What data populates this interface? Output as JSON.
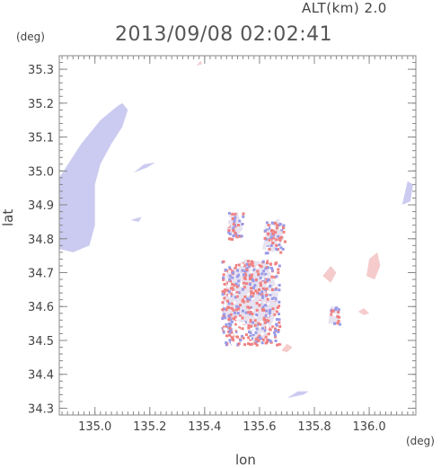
{
  "header": {
    "altitude_text": "ALT(km)  2.0",
    "datetime_text": "2013/09/08  02:02:41"
  },
  "chart_data": {
    "type": "heatmap",
    "title": "2013/09/08  02:02:41",
    "subtitle": "ALT(km)  2.0",
    "xlabel": "lon",
    "ylabel": "lat",
    "x_unit": "(deg)",
    "y_unit": "(deg)",
    "xlim": [
      134.87,
      136.17
    ],
    "ylim": [
      34.28,
      35.34
    ],
    "x_ticks": [
      135.0,
      135.2,
      135.4,
      135.6,
      135.8,
      136.0
    ],
    "x_tick_labels": [
      "135.0",
      "135.2",
      "135.4",
      "135.6",
      "135.8",
      "136.0"
    ],
    "y_ticks": [
      34.3,
      34.4,
      34.5,
      34.6,
      34.7,
      34.8,
      34.9,
      35.0,
      35.1,
      35.2,
      35.3
    ],
    "y_tick_labels": [
      "34.3",
      "34.4",
      "34.5",
      "34.6",
      "34.7",
      "34.8",
      "34.9",
      "35.0",
      "35.1",
      "35.2",
      "35.3"
    ],
    "grid": false,
    "colors": {
      "approaching_light": "#c8c8f0",
      "approaching": "#9a9ae8",
      "receding": "#f08080",
      "receding_light": "#f4c8c8"
    },
    "regions": [
      {
        "name": "west-large-echo",
        "sign": "negative",
        "polygon": [
          [
            134.87,
            34.77
          ],
          [
            134.87,
            34.98
          ],
          [
            134.95,
            35.08
          ],
          [
            135.02,
            35.15
          ],
          [
            135.08,
            35.19
          ],
          [
            135.1,
            35.2
          ],
          [
            135.12,
            35.18
          ],
          [
            135.1,
            35.13
          ],
          [
            135.06,
            35.08
          ],
          [
            135.02,
            35.02
          ],
          [
            135.0,
            34.96
          ],
          [
            135.0,
            34.88
          ],
          [
            135.0,
            34.84
          ],
          [
            134.98,
            34.78
          ],
          [
            134.92,
            34.76
          ]
        ]
      },
      {
        "name": "echo-135-14-34-86",
        "sign": "negative",
        "polygon": [
          [
            135.13,
            34.855
          ],
          [
            135.17,
            34.865
          ],
          [
            135.16,
            34.85
          ]
        ]
      },
      {
        "name": "echo-135-17-35-01",
        "sign": "negative",
        "polygon": [
          [
            135.14,
            34.995
          ],
          [
            135.19,
            35.01
          ],
          [
            135.22,
            35.025
          ],
          [
            135.18,
            35.02
          ]
        ]
      },
      {
        "name": "osaka-cluster",
        "sign": "mixed",
        "polygon": [
          [
            135.46,
            34.56
          ],
          [
            135.48,
            34.7
          ],
          [
            135.55,
            34.74
          ],
          [
            135.62,
            34.73
          ],
          [
            135.67,
            34.65
          ],
          [
            135.66,
            34.58
          ],
          [
            135.62,
            34.5
          ],
          [
            135.58,
            34.49
          ],
          [
            135.55,
            34.55
          ],
          [
            135.5,
            34.56
          ]
        ]
      },
      {
        "name": "north-cluster-135-5",
        "sign": "mixed",
        "polygon": [
          [
            135.48,
            34.82
          ],
          [
            135.49,
            34.87
          ],
          [
            135.52,
            34.88
          ],
          [
            135.54,
            34.83
          ],
          [
            135.51,
            34.8
          ]
        ]
      },
      {
        "name": "north-cluster-135-65",
        "sign": "mixed",
        "polygon": [
          [
            135.61,
            34.77
          ],
          [
            135.63,
            34.84
          ],
          [
            135.67,
            34.86
          ],
          [
            135.69,
            34.8
          ],
          [
            135.65,
            34.76
          ]
        ]
      },
      {
        "name": "echo-135-87-34-7",
        "sign": "positive",
        "polygon": [
          [
            135.83,
            34.69
          ],
          [
            135.86,
            34.72
          ],
          [
            135.88,
            34.7
          ],
          [
            135.86,
            34.67
          ]
        ]
      },
      {
        "name": "echo-136-02-34-72",
        "sign": "positive",
        "polygon": [
          [
            135.99,
            34.69
          ],
          [
            136.0,
            34.74
          ],
          [
            136.03,
            34.76
          ],
          [
            136.04,
            34.72
          ],
          [
            136.02,
            34.68
          ]
        ]
      },
      {
        "name": "echo-135-98-34-59",
        "sign": "positive",
        "polygon": [
          [
            135.96,
            34.585
          ],
          [
            135.98,
            34.595
          ],
          [
            136.0,
            34.58
          ],
          [
            135.98,
            34.575
          ]
        ]
      },
      {
        "name": "echo-135-87-34-57",
        "sign": "mixed",
        "polygon": [
          [
            135.85,
            34.55
          ],
          [
            135.86,
            34.6
          ],
          [
            135.89,
            34.6
          ],
          [
            135.89,
            34.55
          ]
        ]
      },
      {
        "name": "echo-135-7-34-48",
        "sign": "positive",
        "polygon": [
          [
            135.68,
            34.47
          ],
          [
            135.7,
            34.49
          ],
          [
            135.72,
            34.48
          ],
          [
            135.7,
            34.465
          ]
        ]
      },
      {
        "name": "echo-135-73-34-34",
        "sign": "negative",
        "polygon": [
          [
            135.7,
            34.33
          ],
          [
            135.74,
            34.35
          ],
          [
            135.78,
            34.35
          ],
          [
            135.76,
            34.34
          ]
        ]
      },
      {
        "name": "echo-136-14-34-94",
        "sign": "negative",
        "polygon": [
          [
            136.12,
            34.9
          ],
          [
            136.14,
            34.97
          ],
          [
            136.16,
            34.96
          ],
          [
            136.15,
            34.91
          ]
        ]
      },
      {
        "name": "echo-135-38-35-32",
        "sign": "positive",
        "polygon": [
          [
            135.37,
            35.31
          ],
          [
            135.385,
            35.325
          ],
          [
            135.39,
            35.315
          ]
        ]
      }
    ]
  }
}
